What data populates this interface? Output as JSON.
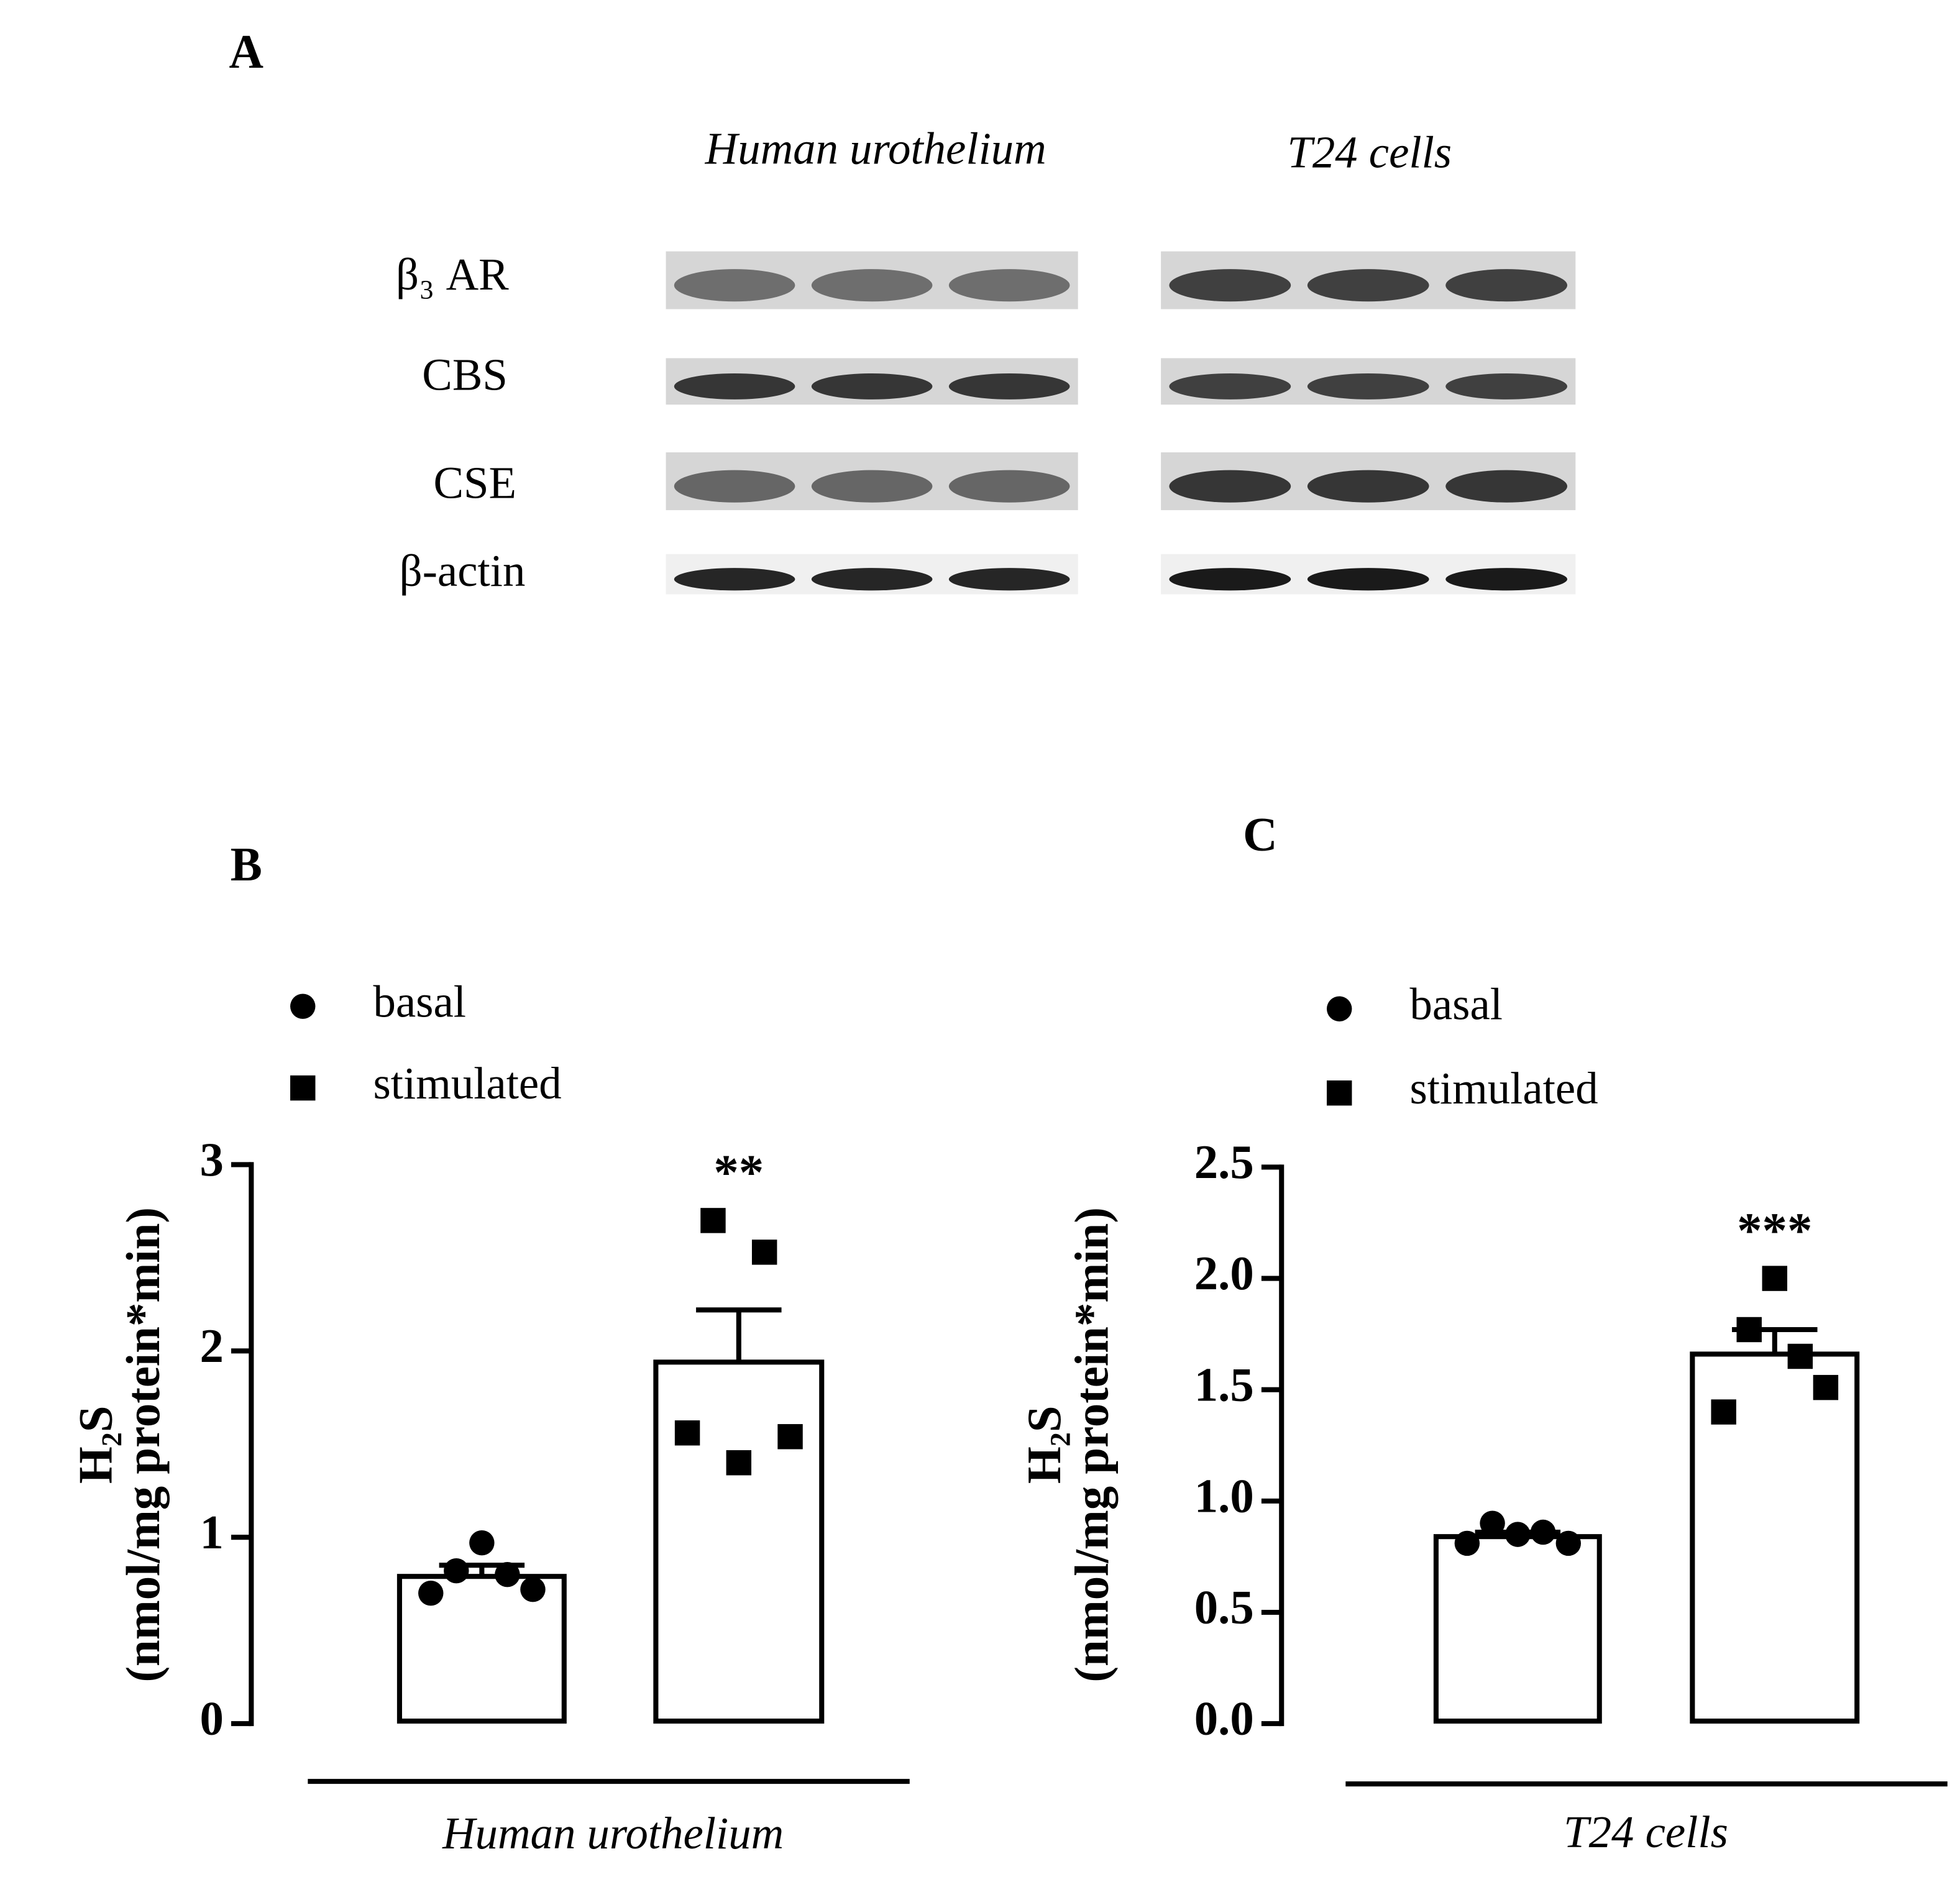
{
  "panel_a": {
    "label": "A",
    "headers": [
      "Human urothelium",
      "T24 cells"
    ],
    "rows": [
      "β₃ AR",
      "CBS",
      "CSE",
      "β-actin"
    ]
  },
  "chart_data": [
    {
      "type": "bar",
      "panel_label": "B",
      "xlabel": "Human urothelium",
      "ylabel": [
        "H₂S",
        "(nmol/mg protein*min)"
      ],
      "ylim": [
        0,
        3
      ],
      "yticks": [
        0,
        1,
        2,
        3
      ],
      "series": [
        {
          "name": "basal",
          "marker": "circle",
          "color": "#000000",
          "value": 0.79,
          "error": 0.06,
          "points": [
            0.7,
            0.82,
            0.97,
            0.8,
            0.72
          ]
        },
        {
          "name": "stimulated",
          "marker": "square",
          "color": "#000000",
          "value": 1.94,
          "error": 0.28,
          "points": [
            1.56,
            2.7,
            1.4,
            2.53,
            1.54
          ],
          "annotation": "**"
        }
      ]
    },
    {
      "type": "bar",
      "panel_label": "C",
      "xlabel": "T24 cells",
      "ylabel": [
        "H₂S",
        "(nmol/mg protein*min)"
      ],
      "ylim": [
        0,
        2.5
      ],
      "yticks": [
        {
          "value": 0,
          "label": "0.0"
        },
        0.5,
        {
          "value": 1,
          "label": "1.0"
        },
        1.5,
        {
          "value": 2,
          "label": "2.0"
        },
        2.5
      ],
      "series": [
        {
          "name": "basal",
          "marker": "circle",
          "color": "#000000",
          "value": 0.84,
          "error": 0.02,
          "points": [
            0.81,
            0.9,
            0.85,
            0.86,
            0.81
          ]
        },
        {
          "name": "stimulated",
          "marker": "square",
          "color": "#000000",
          "value": 1.66,
          "error": 0.11,
          "points": [
            1.4,
            1.77,
            2.0,
            1.65,
            1.51
          ],
          "annotation": "***"
        }
      ]
    }
  ]
}
